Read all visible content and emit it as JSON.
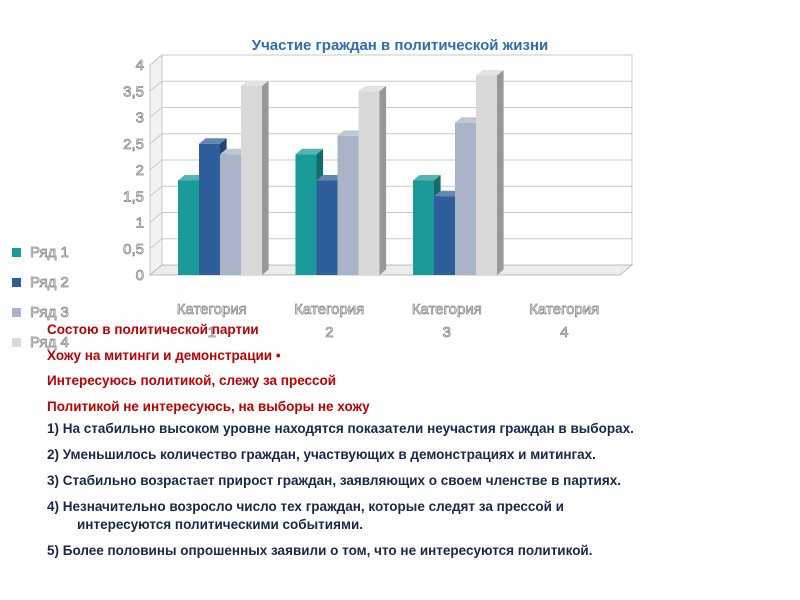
{
  "chart_data": {
    "type": "bar",
    "title": "Участие граждан в политической жизни",
    "categories": [
      "Категория 1",
      "Категория 2",
      "Категория 3",
      "Категория 4"
    ],
    "series": [
      {
        "name": "Ряд 1",
        "color": "#1b9a9a",
        "values": [
          1.8,
          2.3,
          1.8,
          null
        ]
      },
      {
        "name": "Ряд 2",
        "color": "#2f5f9a",
        "values": [
          2.5,
          1.8,
          1.5,
          null
        ]
      },
      {
        "name": "Ряд 3",
        "color": "#a9b4c8",
        "values": [
          2.3,
          2.65,
          2.9,
          null
        ]
      },
      {
        "name": "Ряд 4",
        "color": "#d9d9d9",
        "values": [
          3.6,
          3.5,
          3.8,
          null
        ]
      }
    ],
    "y_ticks": [
      "0",
      "0,5",
      "1",
      "1,5",
      "2",
      "2,5",
      "3",
      "3,5",
      "4"
    ],
    "ylim": [
      0,
      4
    ],
    "grid": true,
    "legend_position": "left",
    "ylabel": "",
    "xlabel": ""
  },
  "legend_labels": [
    "Состою в политической партии",
    "Хожу на митинги и демонстрации •",
    "Интересуюсь политикой, слежу за прессой",
    "Политикой не интересуюсь, на выборы не хожу"
  ],
  "statements": [
    "1)  На стабильно высоком уровне находятся показатели неучастия граждан в выборах.",
    "2)  Уменьшилось количество граждан, участвующих в демонстрациях и митингах.",
    "3)  Стабильно возрастает прирост граждан, заявляющих о своем членстве в партиях.",
    "4)  Незначительно возросло число тех граждан, которые следят за прессой и",
    "интересуются политическими событиями.",
    "5)  Более половины опрошенных заявили о том, что не интересуются политикой."
  ]
}
